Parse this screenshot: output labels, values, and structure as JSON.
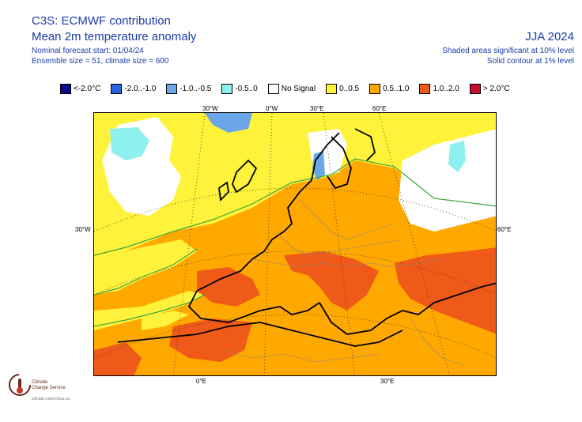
{
  "header": {
    "title": "C3S: ECMWF contribution",
    "subtitle": "Mean 2m temperature anomaly",
    "forecast_start": "Nominal forecast start: 01/04/24",
    "ensemble": "Ensemble size = 51, climate size = 600",
    "season": "JJA 2024",
    "significance_note": "Shaded areas significant at 10% level",
    "contour_note": "Solid contour at 1% level"
  },
  "legend": {
    "items": [
      {
        "label": "<-2.0°C",
        "color": "#0a0a8c"
      },
      {
        "label": "-2.0..-1.0",
        "color": "#2b63e0"
      },
      {
        "label": "-1.0..-0.5",
        "color": "#6aa6e8"
      },
      {
        "label": "-0.5..0",
        "color": "#8ff0f0"
      },
      {
        "label": "No Signal",
        "color": "#ffffff"
      },
      {
        "label": "0..0.5",
        "color": "#fff23a"
      },
      {
        "label": "0.5..1.0",
        "color": "#ffa800"
      },
      {
        "label": "1.0..2.0",
        "color": "#f05a18"
      },
      {
        "label": "> 2.0°C",
        "color": "#c8102e"
      }
    ]
  },
  "axes": {
    "top": [
      "30°W",
      "0°W",
      "30°E",
      "60°E"
    ],
    "left": "30°W",
    "right": "60°E",
    "bottom": [
      "0°E",
      "30°E"
    ]
  },
  "logo": {
    "line1": "Climate",
    "line2": "Change Service",
    "url": "climate.copernicus.eu"
  }
}
